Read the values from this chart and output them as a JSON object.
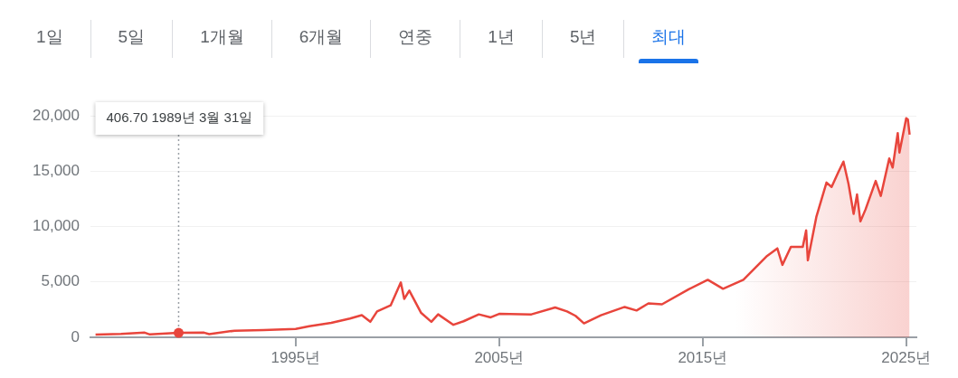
{
  "chart_data": {
    "type": "area",
    "grid": "y",
    "annotations": [
      "1일",
      "5일",
      "1개월",
      "6개월",
      "연중",
      "1년",
      "5년",
      "최대",
      {
        "text": "406.70 1989년 3월 31일",
        "x": "1989-03-31",
        "y": 406.7
      }
    ],
    "xlim": [
      "1984-12",
      "2025-07"
    ],
    "xticks": [
      {
        "value": "1995",
        "label": "1995년"
      },
      {
        "value": "2005",
        "label": "2005년"
      },
      {
        "value": "2015",
        "label": "2015년"
      },
      {
        "value": "2025",
        "label": "2025년"
      }
    ],
    "ylim": [
      0,
      20000
    ],
    "yticks": [
      0,
      {
        "value": 5000,
        "label": "5,000"
      },
      {
        "value": 10000,
        "label": "10,000"
      },
      {
        "value": 15000,
        "label": "15,000"
      },
      {
        "value": 20000,
        "label": "20,000"
      }
    ],
    "series": [
      {
        "color": "#e8453c",
        "x": [
          "1985-03",
          "1986-06",
          "1987-08",
          "1987-11",
          "1989-03-31",
          "1990-07",
          "1990-10",
          "1992-01",
          "1993-06",
          "1995-01",
          "1995-09",
          "1996-10",
          "1997-09",
          "1998-04",
          "1998-09",
          "1999-01",
          "1999-09",
          "2000-03",
          "2000-05",
          "2000-08",
          "2001-03",
          "2001-09",
          "2002-01",
          "2002-10",
          "2003-04",
          "2004-01",
          "2004-08",
          "2005-01",
          "2006-08",
          "2007-10",
          "2008-05",
          "2008-10",
          "2009-03",
          "2010-01",
          "2011-03",
          "2011-10",
          "2012-05",
          "2013-01",
          "2014-05",
          "2015-04",
          "2016-01",
          "2017-01",
          "2018-03",
          "2018-09",
          "2018-12",
          "2019-05",
          "2019-12",
          "2020-02",
          "2020-03",
          "2020-08",
          "2021-02",
          "2021-05",
          "2021-09",
          "2021-12",
          "2022-03",
          "2022-06",
          "2022-08",
          "2022-10",
          "2023-01",
          "2023-07",
          "2023-10",
          "2024-03",
          "2024-05",
          "2024-08",
          "2024-09",
          "2025-01",
          "2025-02",
          "2025-03"
        ],
        "values": [
          250,
          300,
          420,
          260,
          406.7,
          420,
          290,
          600,
          650,
          750,
          1000,
          1300,
          1700,
          2000,
          1400,
          2340,
          2880,
          4950,
          3470,
          4220,
          2200,
          1400,
          2070,
          1130,
          1450,
          2070,
          1800,
          2120,
          2070,
          2690,
          2340,
          1940,
          1260,
          1990,
          2740,
          2420,
          3060,
          2980,
          4350,
          5190,
          4380,
          5190,
          7350,
          8030,
          6540,
          8160,
          8160,
          9650,
          6950,
          10860,
          13970,
          13570,
          14920,
          15860,
          13840,
          11140,
          12890,
          10460,
          11540,
          14110,
          12760,
          16140,
          15320,
          18430,
          16680,
          19780,
          19650,
          18300
        ]
      }
    ]
  }
}
